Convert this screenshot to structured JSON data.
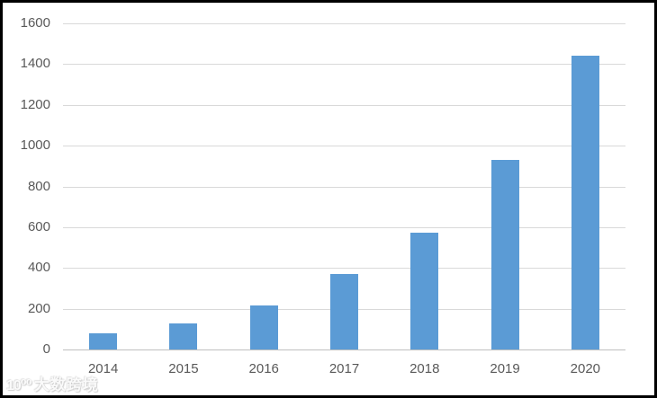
{
  "chart_data": {
    "type": "bar",
    "title": "",
    "xlabel": "",
    "ylabel": "",
    "categories": [
      "2014",
      "2015",
      "2016",
      "2017",
      "2018",
      "2019",
      "2020"
    ],
    "values": [
      80,
      130,
      215,
      370,
      575,
      930,
      1440
    ],
    "ylim": [
      0,
      1600
    ],
    "ytick_step": 200,
    "ytick_labels": [
      "0",
      "200",
      "400",
      "600",
      "800",
      "1000",
      "1200",
      "1400",
      "1600"
    ],
    "grid": true,
    "legend_position": "none",
    "bar_color": "#5b9bd5",
    "gridline_color": "#d9d9d9",
    "axis_line_color": "#bfbfbf",
    "tick_label_color": "#595959"
  },
  "watermark": {
    "logo_text": "10⁰⁰",
    "label": "大数跨境"
  }
}
